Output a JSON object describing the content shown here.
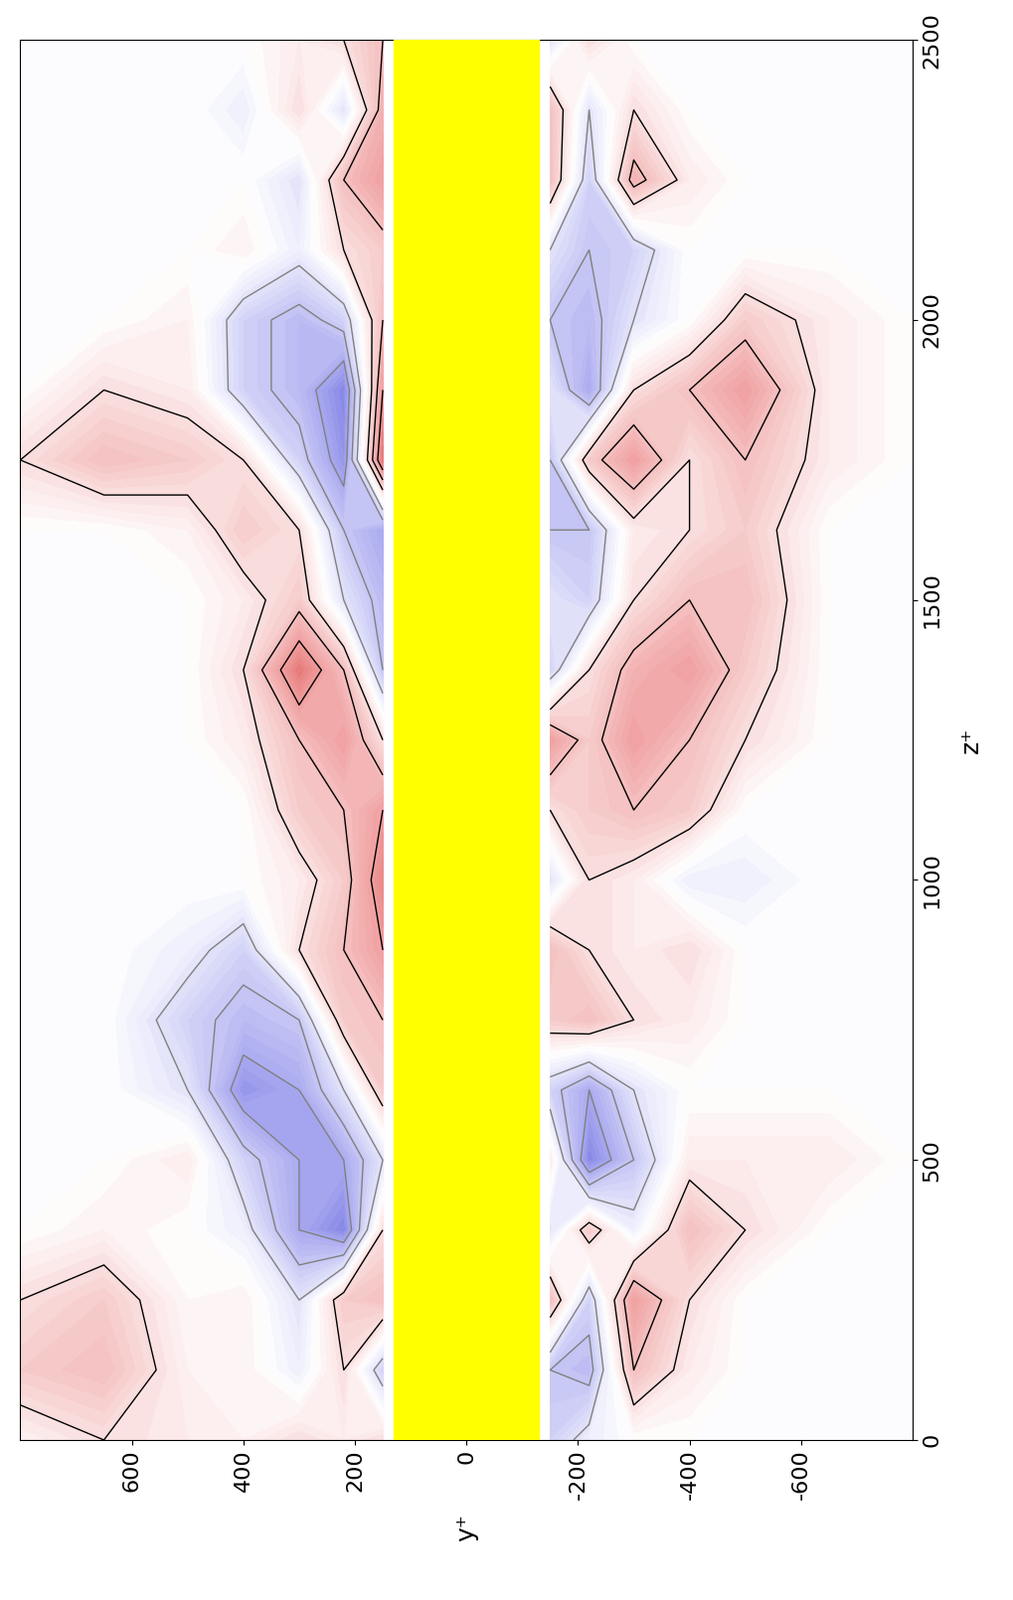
{
  "chart_data": {
    "type": "contour",
    "x_label": "y⁺",
    "y_label": "z⁺",
    "x": [
      -800,
      -650,
      -500,
      -400,
      -300,
      -220,
      -150,
      150,
      220,
      300,
      400,
      500,
      650,
      800
    ],
    "y": [
      0,
      125,
      250,
      375,
      500,
      625,
      750,
      875,
      1000,
      1125,
      1250,
      1375,
      1500,
      1625,
      1750,
      1875,
      2000,
      2125,
      2250,
      2375,
      2500
    ],
    "cells": [
      [
        0.0,
        0.0,
        0.0,
        0.0,
        0.0,
        -0.3,
        -0.8,
        0.5,
        0.3,
        0.5,
        0.2,
        0.3,
        0.5,
        0.2
      ],
      [
        0.0,
        0.0,
        0.0,
        0.3,
        1.0,
        -1.2,
        -1.0,
        -0.8,
        0.5,
        -0.3,
        0.2,
        0.2,
        1.0,
        0.8
      ],
      [
        0.0,
        0.0,
        0.0,
        0.5,
        1.5,
        -0.8,
        1.0,
        1.0,
        0.8,
        -0.5,
        0.2,
        0.1,
        0.8,
        0.5
      ],
      [
        0.0,
        0.0,
        0.5,
        1.0,
        -0.3,
        0.8,
        -0.5,
        0.5,
        -2.0,
        -1.5,
        -0.3,
        0.0,
        0.2,
        0.0
      ],
      [
        0.0,
        0.3,
        0.3,
        0.3,
        -1.0,
        -2.0,
        0.3,
        -0.5,
        -1.5,
        -1.5,
        -0.8,
        0.3,
        0.0,
        0.0
      ],
      [
        0.0,
        0.0,
        0.0,
        0.0,
        -0.5,
        -1.5,
        -0.8,
        0.8,
        -0.5,
        -1.5,
        -1.8,
        -0.5,
        0.0,
        0.0
      ],
      [
        0.0,
        0.0,
        0.0,
        0.3,
        0.5,
        1.0,
        0.8,
        1.0,
        0.8,
        -1.0,
        -1.2,
        -0.8,
        0.0,
        0.0
      ],
      [
        0.0,
        0.0,
        0.0,
        0.5,
        0.3,
        0.5,
        1.0,
        1.5,
        1.0,
        0.5,
        -0.8,
        -0.3,
        0.0,
        0.0
      ],
      [
        0.0,
        0.0,
        -0.3,
        -0.3,
        0.3,
        0.5,
        -0.5,
        1.8,
        0.8,
        0.3,
        0.0,
        0.0,
        0.0,
        0.0
      ],
      [
        0.0,
        0.0,
        0.0,
        0.8,
        1.0,
        0.8,
        0.5,
        1.5,
        1.0,
        0.8,
        0.0,
        0.0,
        0.0,
        0.0
      ],
      [
        0.0,
        0.0,
        0.5,
        1.0,
        1.5,
        0.8,
        1.5,
        0.5,
        1.5,
        1.0,
        0.3,
        0.0,
        0.0,
        0.0
      ],
      [
        0.0,
        0.0,
        0.8,
        1.5,
        1.2,
        0.5,
        -0.8,
        -1.0,
        1.0,
        2.0,
        0.5,
        0.0,
        0.0,
        0.0
      ],
      [
        0.0,
        0.0,
        1.0,
        1.0,
        0.5,
        -0.8,
        -0.5,
        -1.2,
        -0.5,
        0.8,
        0.3,
        0.0,
        0.0,
        0.0
      ],
      [
        0.0,
        0.0,
        0.8,
        0.5,
        0.3,
        -1.0,
        -1.0,
        -1.5,
        -1.0,
        0.5,
        0.8,
        0.2,
        0.0,
        0.0
      ],
      [
        0.0,
        0.3,
        1.0,
        0.5,
        1.5,
        0.8,
        -1.0,
        2.0,
        -1.8,
        -0.8,
        0.5,
        0.8,
        1.0,
        0.5
      ],
      [
        0.0,
        0.3,
        1.5,
        1.0,
        0.5,
        -1.5,
        -0.5,
        1.5,
        -2.0,
        -1.2,
        -0.8,
        0.3,
        0.5,
        0.0
      ],
      [
        0.0,
        0.3,
        0.8,
        0.0,
        -0.5,
        -1.2,
        -1.0,
        1.0,
        -0.8,
        -1.2,
        -0.8,
        0.2,
        0.0,
        0.0
      ],
      [
        0.0,
        0.0,
        0.0,
        0.0,
        -0.8,
        -1.0,
        -0.5,
        0.8,
        0.5,
        -0.3,
        0.2,
        0.0,
        0.0,
        0.0
      ],
      [
        0.0,
        0.0,
        0.0,
        0.3,
        1.2,
        -0.8,
        1.0,
        1.5,
        1.0,
        -0.5,
        0.0,
        0.0,
        0.0,
        0.0
      ],
      [
        0.0,
        0.0,
        0.0,
        0.0,
        0.5,
        -0.5,
        1.0,
        1.2,
        -0.5,
        0.5,
        -0.3,
        0.0,
        0.0,
        0.0
      ],
      [
        0.0,
        0.0,
        0.0,
        0.0,
        0.0,
        0.5,
        -0.5,
        1.0,
        0.5,
        0.3,
        0.0,
        0.0,
        0.0,
        0.0
      ]
    ],
    "clim": [
      -3,
      3
    ],
    "levels": [
      -2,
      -1.5,
      -1,
      -0.5,
      0.5,
      1,
      1.5,
      2
    ],
    "band": [
      -130,
      130
    ],
    "xlim": [
      800,
      -800
    ],
    "ylim": [
      0,
      2500
    ],
    "xticks": [
      600,
      400,
      200,
      0,
      -200,
      -400,
      -600
    ],
    "yticks": [
      0,
      500,
      1000,
      1500,
      2000,
      2500
    ]
  }
}
